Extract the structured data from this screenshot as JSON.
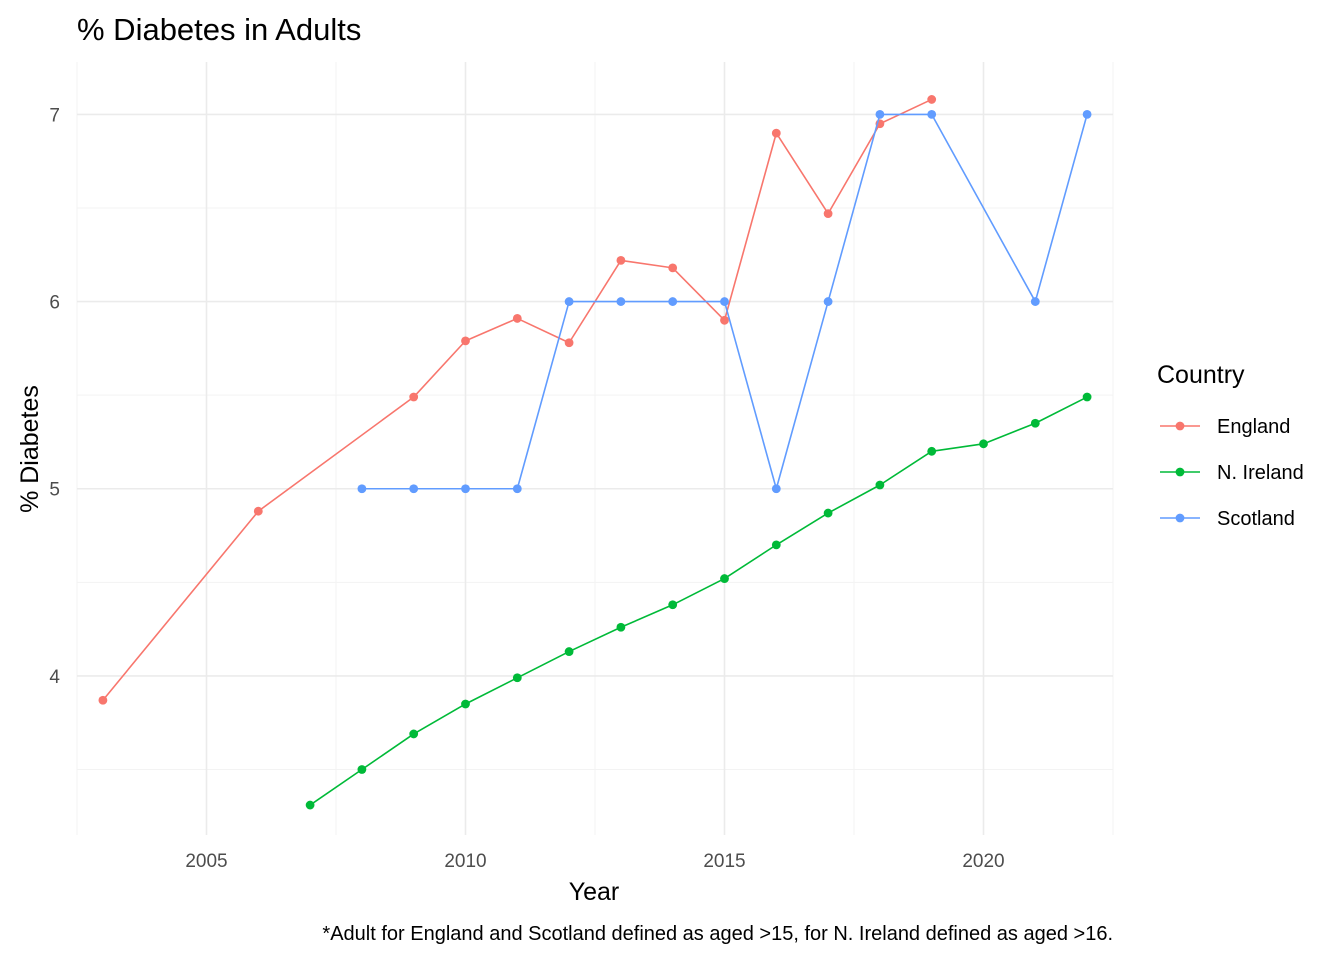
{
  "chart_data": {
    "type": "line",
    "title": "% Diabetes in Adults",
    "xlabel": "Year",
    "ylabel": "% Diabetes",
    "caption": "*Adult for England and Scotland defined as aged >15, for N. Ireland defined as aged >16.",
    "xlim": [
      2002.5,
      2022.5
    ],
    "ylim": [
      3.15,
      7.28
    ],
    "x_ticks": [
      2005,
      2010,
      2015,
      2020
    ],
    "x_tick_labels": [
      "2005",
      "2010",
      "2015",
      "2020"
    ],
    "y_ticks": [
      4,
      5,
      6,
      7
    ],
    "y_tick_labels": [
      "4",
      "5",
      "6",
      "7"
    ],
    "grid": true,
    "legend": {
      "title": "Country",
      "position": "right"
    },
    "series": [
      {
        "name": "England",
        "color": "#F8766D",
        "points": [
          {
            "x": 2003,
            "y": 3.87
          },
          {
            "x": 2006,
            "y": 4.88
          },
          {
            "x": 2009,
            "y": 5.49
          },
          {
            "x": 2010,
            "y": 5.79
          },
          {
            "x": 2011,
            "y": 5.91
          },
          {
            "x": 2012,
            "y": 5.78
          },
          {
            "x": 2013,
            "y": 6.22
          },
          {
            "x": 2014,
            "y": 6.18
          },
          {
            "x": 2015,
            "y": 5.9
          },
          {
            "x": 2016,
            "y": 6.9
          },
          {
            "x": 2017,
            "y": 6.47
          },
          {
            "x": 2018,
            "y": 6.95
          },
          {
            "x": 2019,
            "y": 7.08
          }
        ]
      },
      {
        "name": "N. Ireland",
        "color": "#00BA38",
        "points": [
          {
            "x": 2007,
            "y": 3.31
          },
          {
            "x": 2008,
            "y": 3.5
          },
          {
            "x": 2009,
            "y": 3.69
          },
          {
            "x": 2010,
            "y": 3.85
          },
          {
            "x": 2011,
            "y": 3.99
          },
          {
            "x": 2012,
            "y": 4.13
          },
          {
            "x": 2013,
            "y": 4.26
          },
          {
            "x": 2014,
            "y": 4.38
          },
          {
            "x": 2015,
            "y": 4.52
          },
          {
            "x": 2016,
            "y": 4.7
          },
          {
            "x": 2017,
            "y": 4.87
          },
          {
            "x": 2018,
            "y": 5.02
          },
          {
            "x": 2019,
            "y": 5.2
          },
          {
            "x": 2020,
            "y": 5.24
          },
          {
            "x": 2021,
            "y": 5.35
          },
          {
            "x": 2022,
            "y": 5.49
          }
        ]
      },
      {
        "name": "Scotland",
        "color": "#619CFF",
        "points": [
          {
            "x": 2008,
            "y": 5
          },
          {
            "x": 2009,
            "y": 5
          },
          {
            "x": 2010,
            "y": 5
          },
          {
            "x": 2011,
            "y": 5
          },
          {
            "x": 2012,
            "y": 6
          },
          {
            "x": 2013,
            "y": 6
          },
          {
            "x": 2014,
            "y": 6
          },
          {
            "x": 2015,
            "y": 6
          },
          {
            "x": 2016,
            "y": 5
          },
          {
            "x": 2017,
            "y": 6
          },
          {
            "x": 2018,
            "y": 7
          },
          {
            "x": 2019,
            "y": 7
          },
          {
            "x": 2021,
            "y": 6
          },
          {
            "x": 2022,
            "y": 7
          }
        ]
      }
    ]
  }
}
